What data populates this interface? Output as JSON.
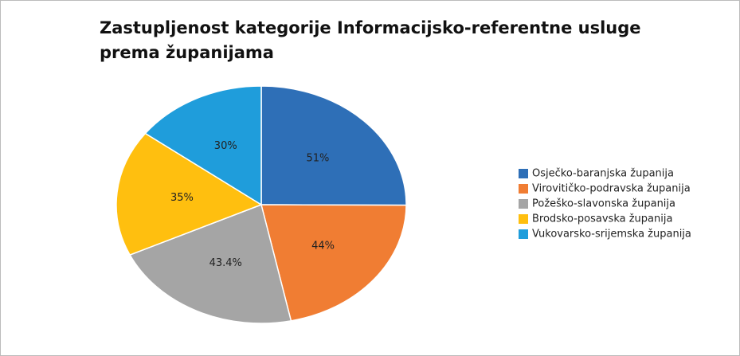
{
  "chart_data": {
    "type": "pie",
    "title": "Zastupljenost kategorije Informacijsko-referentne usluge prema županijama",
    "categories": [
      "Osječko-baranjska županija",
      "Virovitičko-podravska županija",
      "Požeško-slavonska županija",
      "Brodsko-posavska županija",
      "Vukovarsko-srijemska županija"
    ],
    "values": [
      51,
      44,
      43.4,
      35,
      30
    ],
    "value_labels": [
      "51%",
      "44%",
      "43.4%",
      "35%",
      "30%"
    ],
    "colors": [
      "#2e6fb7",
      "#f07d33",
      "#a5a5a5",
      "#ffbf0f",
      "#1f9ddb"
    ],
    "legend": "right"
  }
}
